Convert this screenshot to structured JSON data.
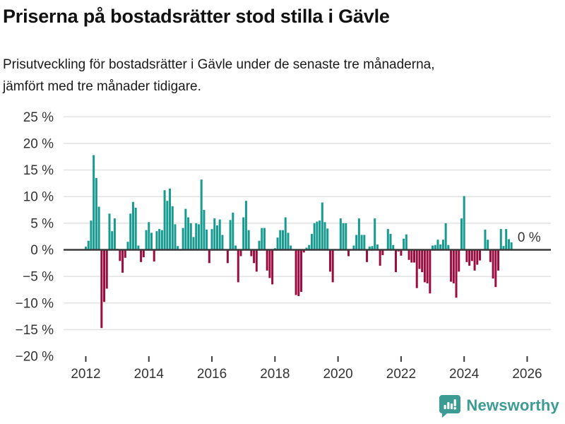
{
  "header": {
    "title": "Priserna på bostadsrätter stod stilla i Gävle",
    "subtitle_line1": "Prisutveckling för bostadsrätter i Gävle under de senaste tre månaderna,",
    "subtitle_line2": "jämfört med tre månader tidigare."
  },
  "chart_data": {
    "type": "bar",
    "title": "Priserna på bostadsrätter stod stilla i Gävle",
    "xlabel": "",
    "ylabel": "",
    "unit": "%",
    "start_month": "2012-01",
    "frequency": "monthly",
    "series": [
      {
        "name": "Prisutveckling bostadsrätter Gävle, 3 mån jämfört med föregående 3 mån",
        "values": [
          0.6,
          1.7,
          5.5,
          17.8,
          13.5,
          8.1,
          -14.7,
          -9.8,
          -7.3,
          6.8,
          3.5,
          5.9,
          0.2,
          -2.1,
          -4.3,
          -1.5,
          1.5,
          6.8,
          9.0,
          7.9,
          0.8,
          -2.3,
          -1.4,
          3.7,
          5.2,
          3.2,
          -2.2,
          3.5,
          3.9,
          3.7,
          11.2,
          9.2,
          11.5,
          8.2,
          4.8,
          0.7,
          0.0,
          4.1,
          7.7,
          6.1,
          5.0,
          2.4,
          5.0,
          4.8,
          13.2,
          7.5,
          3.8,
          -2.5,
          3.9,
          5.9,
          4.6,
          5.7,
          2.8,
          0.0,
          -2.5,
          5.6,
          7.0,
          0.8,
          -6.1,
          -1.2,
          6.1,
          9.2,
          3.7,
          -1.2,
          -2.5,
          -4.1,
          1.7,
          4.1,
          4.1,
          -3.9,
          -5.3,
          -6.5,
          0.3,
          2.3,
          3.7,
          3.7,
          6.1,
          3.2,
          0.8,
          0.0,
          -8.5,
          -8.7,
          -7.9,
          -0.5,
          0.4,
          0.9,
          3.0,
          5.0,
          5.3,
          5.5,
          8.9,
          5.2,
          4.0,
          -4.1,
          -6.1,
          0.0,
          0.0,
          5.9,
          5.0,
          5.0,
          -1.2,
          0.0,
          0.8,
          2.8,
          5.9,
          2.8,
          2.8,
          -2.3,
          0.6,
          0.7,
          5.9,
          1.0,
          -3.0,
          -1.0,
          0.0,
          3.9,
          3.0,
          0.9,
          -4.2,
          -0.3,
          -1.1,
          2.1,
          2.9,
          -1.9,
          -2.4,
          -2.4,
          -7.2,
          -3.6,
          -4.2,
          -6.1,
          -6.3,
          -8.2,
          0.8,
          0.9,
          1.9,
          1.0,
          1.9,
          5.0,
          0.9,
          -6.0,
          -6.3,
          -9.0,
          -4.1,
          5.9,
          10.1,
          -2.3,
          -3.0,
          -2.1,
          -3.9,
          -2.8,
          -2.0,
          0.0,
          3.8,
          1.9,
          -2.3,
          -5.4,
          -7.0,
          -3.9,
          3.9,
          0.7,
          3.9,
          2.0,
          1.4,
          0.0
        ]
      }
    ],
    "ylim": [
      -20,
      25
    ],
    "y_ticks": [
      {
        "value": 25,
        "label": "25 %"
      },
      {
        "value": 20,
        "label": "20 %"
      },
      {
        "value": 15,
        "label": "15 %"
      },
      {
        "value": 10,
        "label": "10 %"
      },
      {
        "value": 5,
        "label": "5 %"
      },
      {
        "value": 0,
        "label": "0 %"
      },
      {
        "value": -5,
        "label": "−5 %"
      },
      {
        "value": -10,
        "label": "−10 %"
      },
      {
        "value": -15,
        "label": "−15 %"
      },
      {
        "value": -20,
        "label": "−20 %"
      }
    ],
    "x_ticks": [
      {
        "year": 2012,
        "label": "2012"
      },
      {
        "year": 2014,
        "label": "2014"
      },
      {
        "year": 2016,
        "label": "2016"
      },
      {
        "year": 2018,
        "label": "2018"
      },
      {
        "year": 2020,
        "label": "2020"
      },
      {
        "year": 2022,
        "label": "2022"
      },
      {
        "year": 2024,
        "label": "2024"
      },
      {
        "year": 2026,
        "label": "2026"
      }
    ],
    "end_label": "0 %",
    "grid": true,
    "legend_position": "none",
    "colors": {
      "positive": "#179a90",
      "negative": "#9b0c40",
      "axis": "#3a3a3a",
      "gridline": "#e4e4e4",
      "tick_text": "#333333"
    }
  },
  "footer": {
    "brand": "Newsworthy",
    "brand_color": "#3c9c94",
    "logo_icon": "bar-chart-speech-bubble"
  }
}
